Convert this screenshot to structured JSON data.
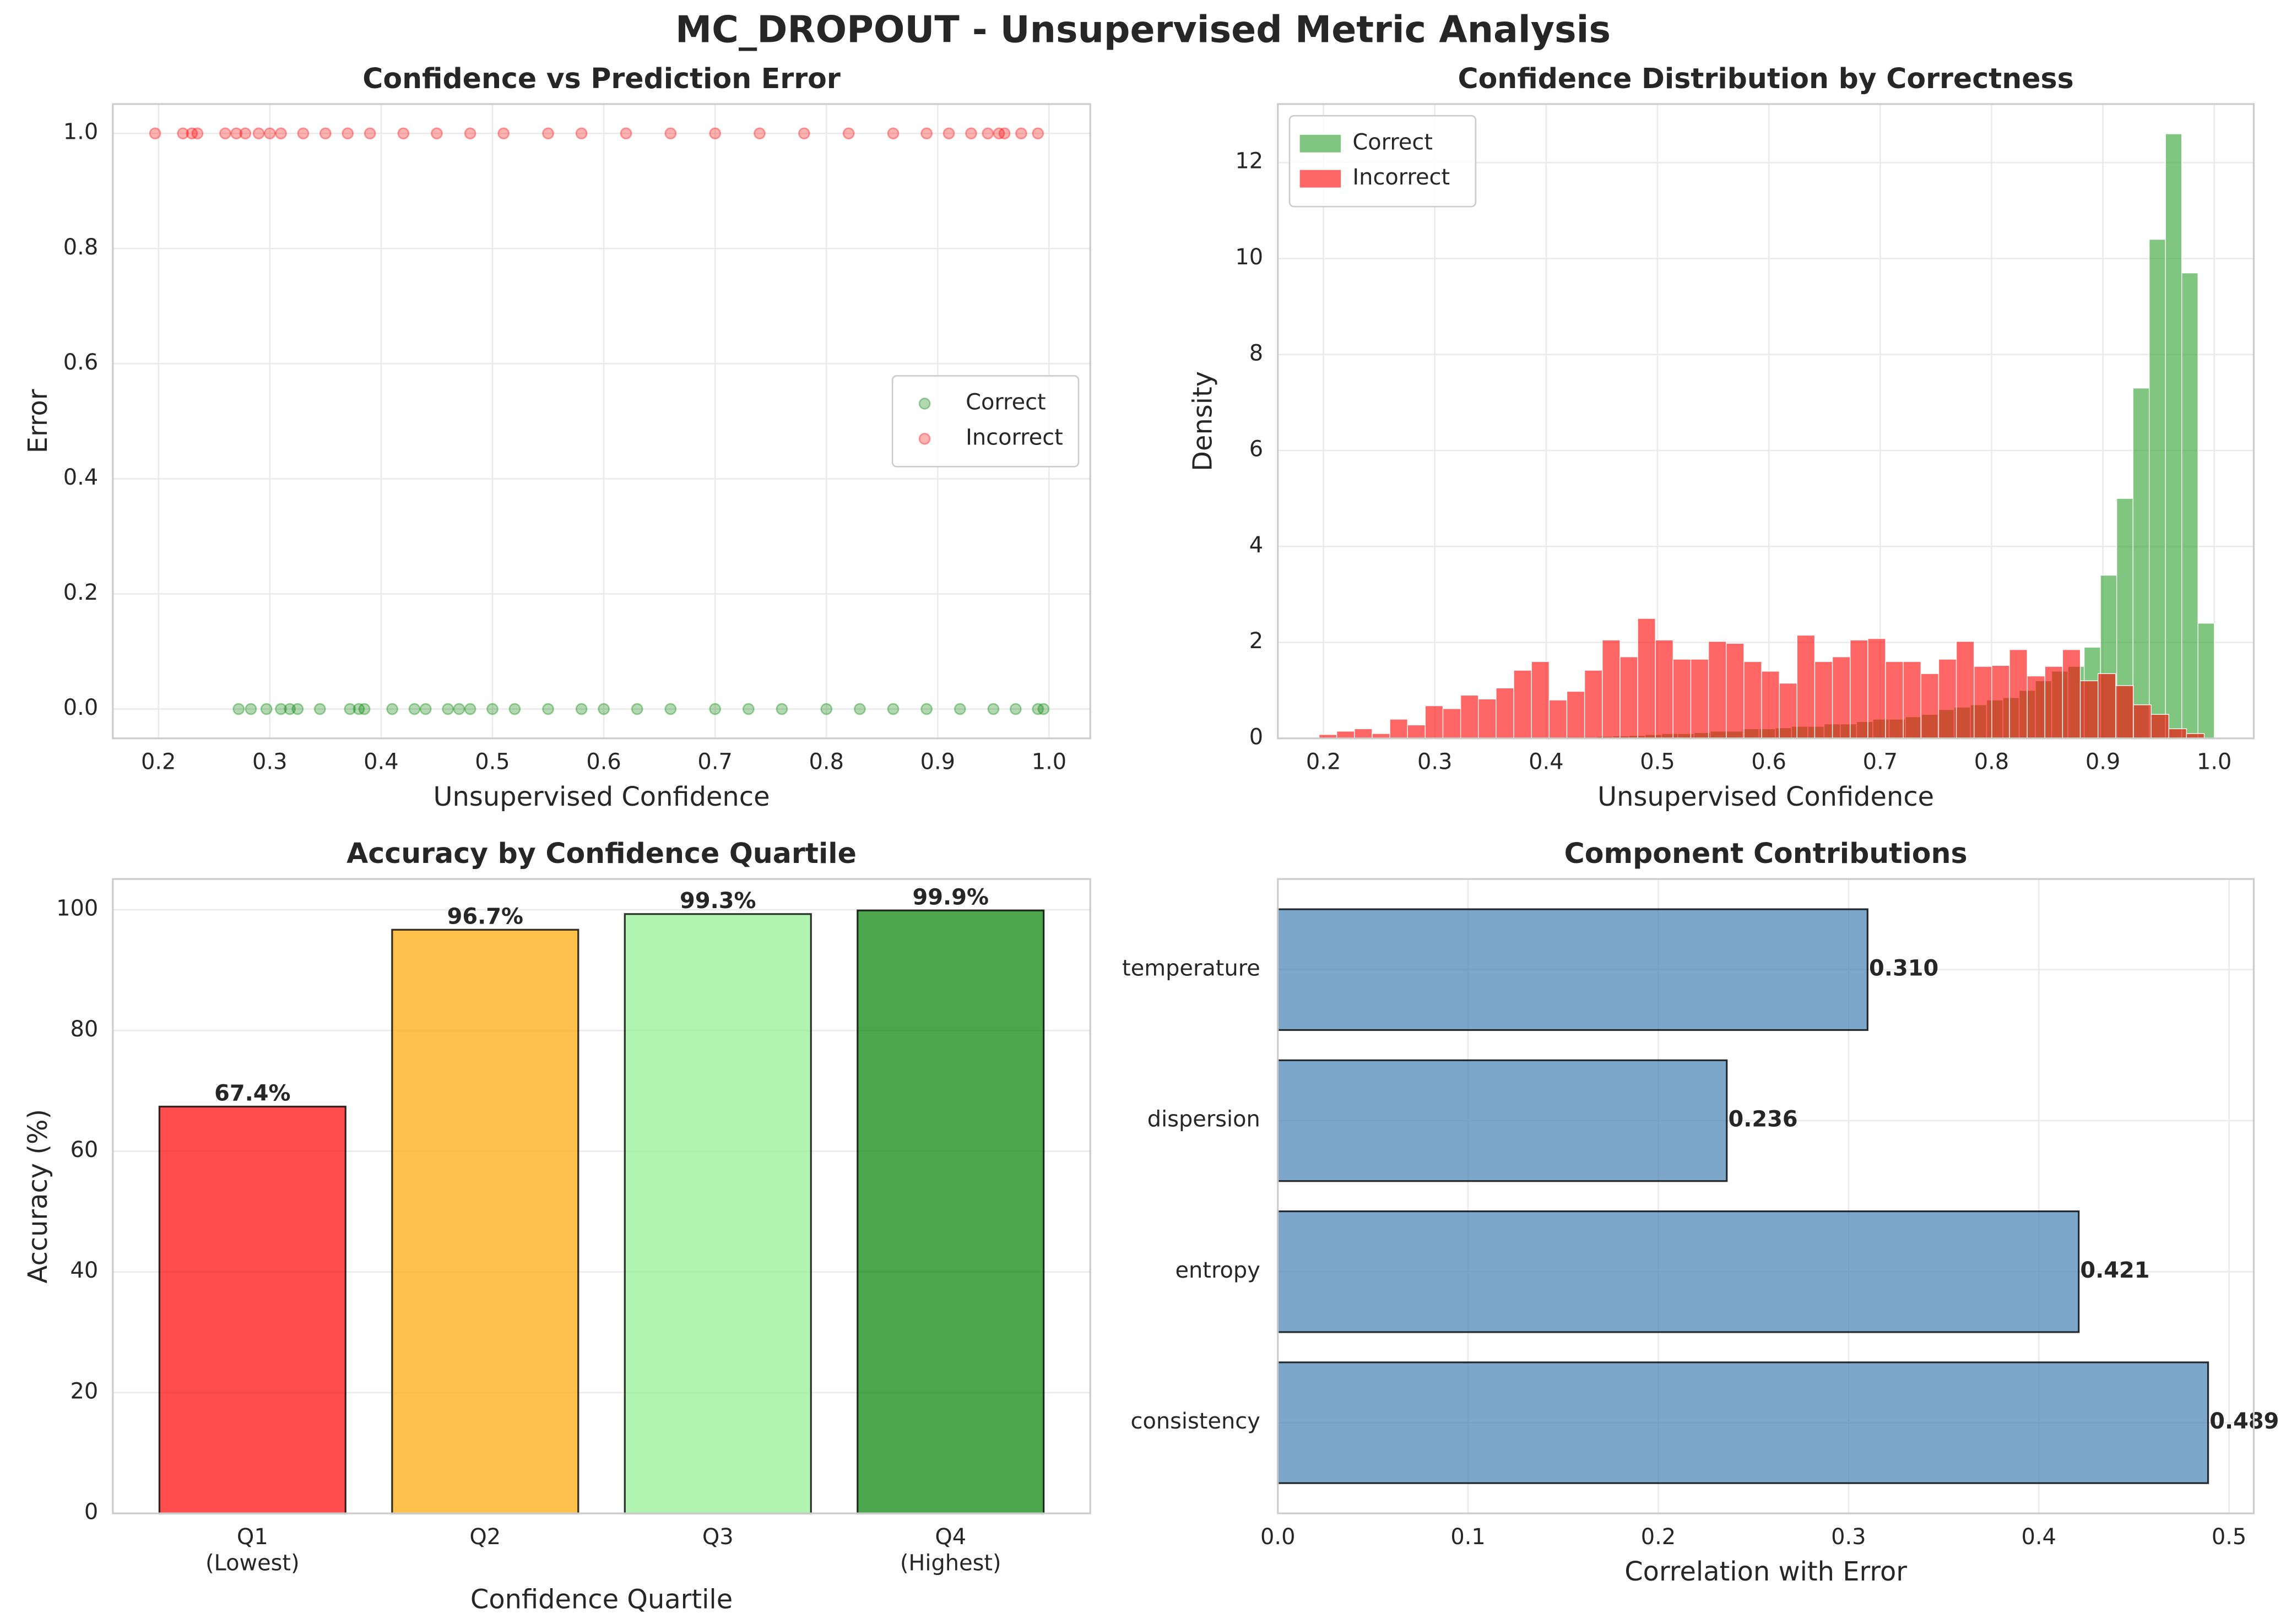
{
  "title": "MC_DROPOUT - Unsupervised Metric Analysis",
  "chart_data": [
    {
      "type": "scatter",
      "title": "Confidence vs Prediction Error",
      "x_label": "Unsupervised Confidence",
      "y_label": "Error",
      "xlim": [
        0.159,
        1.037
      ],
      "ylim": [
        -0.051,
        1.051
      ],
      "xticks": [
        0.2,
        0.3,
        0.4,
        0.5,
        0.6,
        0.7,
        0.8,
        0.9,
        {
          "value": 1.0,
          "label": "1.0"
        }
      ],
      "yticks": [
        {
          "value": 0,
          "label": "0.0"
        },
        0.2,
        0.4,
        0.6,
        0.8,
        {
          "value": 1.0,
          "label": "1.0"
        }
      ],
      "grid": true,
      "legend": "center right",
      "series": [
        {
          "name": "Correct",
          "color": "#008000",
          "x": [
            0.272,
            0.283,
            0.297,
            0.31,
            0.318,
            0.325,
            0.345,
            0.372,
            0.38,
            0.385,
            0.41,
            0.43,
            0.44,
            0.46,
            0.47,
            0.48,
            0.5,
            0.52,
            0.55,
            0.58,
            0.6,
            0.63,
            0.66,
            0.7,
            0.73,
            0.76,
            0.8,
            0.83,
            0.86,
            0.89,
            0.92,
            0.95,
            0.97,
            0.99,
            0.995
          ],
          "values": [
            0,
            0,
            0,
            0,
            0,
            0,
            0,
            0,
            0,
            0,
            0,
            0,
            0,
            0,
            0,
            0,
            0,
            0,
            0,
            0,
            0,
            0,
            0,
            0,
            0,
            0,
            0,
            0,
            0,
            0,
            0,
            0,
            0,
            0,
            0
          ]
        },
        {
          "name": "Incorrect",
          "color": "#ff0000",
          "x": [
            0.197,
            0.222,
            0.23,
            0.235,
            0.26,
            0.27,
            0.278,
            0.29,
            0.3,
            0.31,
            0.33,
            0.35,
            0.37,
            0.39,
            0.42,
            0.45,
            0.48,
            0.51,
            0.55,
            0.58,
            0.62,
            0.66,
            0.7,
            0.74,
            0.78,
            0.82,
            0.86,
            0.89,
            0.91,
            0.93,
            0.945,
            0.955,
            0.96,
            0.975,
            0.99
          ],
          "values": [
            1,
            1,
            1,
            1,
            1,
            1,
            1,
            1,
            1,
            1,
            1,
            1,
            1,
            1,
            1,
            1,
            1,
            1,
            1,
            1,
            1,
            1,
            1,
            1,
            1,
            1,
            1,
            1,
            1,
            1,
            1,
            1,
            1,
            1,
            1
          ]
        }
      ]
    },
    {
      "type": "histogram",
      "title": "Confidence Distribution by Correctness",
      "x_label": "Unsupervised Confidence",
      "y_label": "Density",
      "xlim": [
        0.159,
        1.0355
      ],
      "ylim": [
        0,
        13.22
      ],
      "xticks": [
        0.2,
        0.3,
        0.4,
        0.5,
        0.6,
        0.7,
        0.8,
        0.9,
        {
          "value": 1.0,
          "label": "1.0"
        }
      ],
      "yticks": [
        0,
        2,
        4,
        6,
        8,
        10,
        12
      ],
      "grid": true,
      "legend": "upper left",
      "series": [
        {
          "name": "Correct",
          "color": "#2ca02c",
          "bins": [
            0.27,
            0.2846,
            0.2992,
            0.3138,
            0.3284,
            0.343,
            0.3576,
            0.3722,
            0.3868,
            0.4014,
            0.416,
            0.4306,
            0.4452,
            0.4598,
            0.4744,
            0.489,
            0.5036,
            0.5182,
            0.5328,
            0.5474,
            0.562,
            0.5766,
            0.5912,
            0.6058,
            0.6204,
            0.635,
            0.6496,
            0.6642,
            0.6788,
            0.6934,
            0.708,
            0.7226,
            0.7372,
            0.7518,
            0.7664,
            0.781,
            0.7956,
            0.8102,
            0.8248,
            0.8394,
            0.854,
            0.8686,
            0.8832,
            0.8978,
            0.9124,
            0.927,
            0.9416,
            0.9562,
            0.9708,
            0.9854,
            1.0
          ],
          "values": [
            0.01,
            0.01,
            0.02,
            0.01,
            0.01,
            0.02,
            0.02,
            0.02,
            0.02,
            0.02,
            0.03,
            0.03,
            0.04,
            0.05,
            0.06,
            0.08,
            0.1,
            0.1,
            0.12,
            0.15,
            0.15,
            0.2,
            0.2,
            0.22,
            0.25,
            0.25,
            0.3,
            0.3,
            0.35,
            0.4,
            0.4,
            0.45,
            0.5,
            0.6,
            0.65,
            0.7,
            0.8,
            0.85,
            1.0,
            1.2,
            1.4,
            1.5,
            1.9,
            3.4,
            5.0,
            7.3,
            10.4,
            12.6,
            9.7,
            2.4
          ]
        },
        {
          "name": "Incorrect",
          "color": "#ff0000",
          "bins": [
            0.196,
            0.2119,
            0.2278,
            0.2437,
            0.2596,
            0.2755,
            0.2914,
            0.3073,
            0.3232,
            0.3391,
            0.355,
            0.3709,
            0.3868,
            0.4027,
            0.4186,
            0.4345,
            0.4504,
            0.4663,
            0.4822,
            0.4981,
            0.514,
            0.5299,
            0.5458,
            0.5617,
            0.5776,
            0.5935,
            0.6094,
            0.6253,
            0.6412,
            0.6571,
            0.673,
            0.6889,
            0.7048,
            0.7207,
            0.7366,
            0.7525,
            0.7684,
            0.7843,
            0.8002,
            0.8161,
            0.832,
            0.8479,
            0.8638,
            0.8797,
            0.8956,
            0.9115,
            0.9274,
            0.9433,
            0.9592,
            0.9751,
            0.991
          ],
          "values": [
            0.08,
            0.15,
            0.2,
            0.1,
            0.4,
            0.28,
            0.68,
            0.62,
            0.9,
            0.82,
            1.05,
            1.42,
            1.6,
            0.8,
            0.98,
            1.42,
            2.05,
            1.7,
            2.5,
            2.05,
            1.65,
            1.65,
            2.02,
            1.98,
            1.6,
            1.4,
            1.15,
            2.15,
            1.6,
            1.7,
            2.05,
            2.08,
            1.6,
            1.6,
            1.35,
            1.65,
            2.02,
            1.5,
            1.52,
            1.85,
            1.3,
            1.5,
            1.85,
            1.2,
            1.35,
            1.1,
            0.7,
            0.5,
            0.2,
            0.1
          ]
        }
      ]
    },
    {
      "type": "bar",
      "title": "Accuracy by Confidence Quartile",
      "x_label": "Confidence Quartile",
      "y_label": "Accuracy (%)",
      "categories": [
        "Q1",
        "Q2",
        "Q3",
        "Q4"
      ],
      "category_notes": [
        "(Lowest)",
        null,
        null,
        "(Highest)"
      ],
      "values": [
        67.4,
        96.7,
        99.3,
        99.9
      ],
      "value_labels": [
        "67.4%",
        "96.7%",
        "99.3%",
        "99.9%"
      ],
      "colors": [
        "#ff0000",
        "#ffa500",
        "#90ee90",
        "#008000"
      ],
      "ylim": [
        0,
        105.1
      ],
      "yticks": [
        0,
        20,
        40,
        60,
        80,
        100
      ],
      "grid": true
    },
    {
      "type": "hbar",
      "title": "Component Contributions",
      "x_label": "Correlation with Error",
      "categories": [
        "temperature",
        "dispersion",
        "entropy",
        "consistency"
      ],
      "values": [
        0.31,
        0.236,
        0.421,
        0.489
      ],
      "value_labels": [
        "0.310",
        "0.236",
        "0.421",
        "0.489"
      ],
      "color": "#4682b4",
      "xlim": [
        0,
        0.513
      ],
      "xticks": [
        {
          "value": 0,
          "label": "0.0"
        },
        0.1,
        0.2,
        0.3,
        0.4,
        0.5
      ],
      "grid": true
    }
  ]
}
